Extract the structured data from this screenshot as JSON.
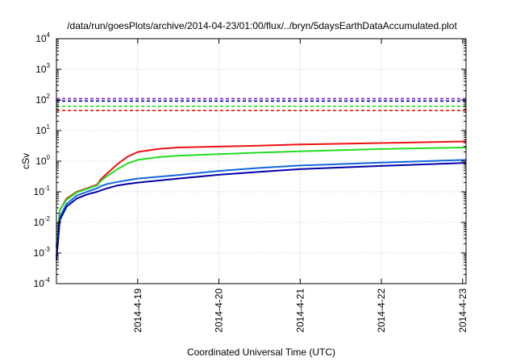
{
  "chart_data": {
    "type": "line",
    "title": "/data/run/goesPlots/archive/2014-04-23/01:00/flux/../bryn/5daysEarthDataAccumulated.plot",
    "xlabel": "Coordinated Universal Time (UTC)",
    "ylabel": "cSv",
    "x_ticks": [
      "2014-4-19",
      "2014-4-20",
      "2014-4-21",
      "2014-4-22",
      "2014-4-23"
    ],
    "x_range": [
      "2014-04-18 00:00",
      "2014-04-23 01:00"
    ],
    "y_scale": "log",
    "ylim": [
      0.0001,
      10000
    ],
    "y_ticks": [
      {
        "base": "10",
        "exp": "-4"
      },
      {
        "base": "10",
        "exp": "-3"
      },
      {
        "base": "10",
        "exp": "-2"
      },
      {
        "base": "10",
        "exp": "-1"
      },
      {
        "base": "10",
        "exp": "0"
      },
      {
        "base": "10",
        "exp": "1"
      },
      {
        "base": "10",
        "exp": "2"
      },
      {
        "base": "10",
        "exp": "3"
      },
      {
        "base": "10",
        "exp": "4"
      }
    ],
    "grid": true,
    "x_grid_color": "#bbbbbb",
    "series": [
      {
        "color": "#ee1111",
        "style": "solid",
        "x": [
          "2014-04-18 00:00",
          "2014-04-18 01:00",
          "2014-04-18 03:00",
          "2014-04-18 06:00",
          "2014-04-18 09:00",
          "2014-04-18 12:00",
          "2014-04-18 13:00",
          "2014-04-18 15:00",
          "2014-04-18 18:00",
          "2014-04-18 21:00",
          "2014-04-19 00:00",
          "2014-04-19 06:00",
          "2014-04-19 12:00",
          "2014-04-20 00:00",
          "2014-04-20 12:00",
          "2014-04-21 00:00",
          "2014-04-22 00:00",
          "2014-04-23 01:00"
        ],
        "y": [
          0.0015,
          0.025,
          0.06,
          0.1,
          0.13,
          0.17,
          0.25,
          0.4,
          0.8,
          1.4,
          2.0,
          2.5,
          2.8,
          3.0,
          3.2,
          3.5,
          3.9,
          4.4
        ]
      },
      {
        "color": "#22dd22",
        "style": "solid",
        "x": [
          "2014-04-18 00:00",
          "2014-04-18 01:00",
          "2014-04-18 03:00",
          "2014-04-18 06:00",
          "2014-04-18 09:00",
          "2014-04-18 12:00",
          "2014-04-18 13:00",
          "2014-04-18 15:00",
          "2014-04-18 18:00",
          "2014-04-18 21:00",
          "2014-04-19 00:00",
          "2014-04-19 06:00",
          "2014-04-19 12:00",
          "2014-04-20 00:00",
          "2014-04-20 12:00",
          "2014-04-21 00:00",
          "2014-04-22 00:00",
          "2014-04-23 01:00"
        ],
        "y": [
          0.0015,
          0.025,
          0.055,
          0.095,
          0.125,
          0.16,
          0.22,
          0.33,
          0.55,
          0.85,
          1.1,
          1.35,
          1.5,
          1.7,
          1.9,
          2.1,
          2.5,
          2.8
        ]
      },
      {
        "color": "#1166dd",
        "style": "solid",
        "x": [
          "2014-04-18 00:00",
          "2014-04-18 01:00",
          "2014-04-18 03:00",
          "2014-04-18 06:00",
          "2014-04-18 09:00",
          "2014-04-18 12:00",
          "2014-04-18 13:00",
          "2014-04-18 15:00",
          "2014-04-18 18:00",
          "2014-04-18 21:00",
          "2014-04-19 00:00",
          "2014-04-19 12:00",
          "2014-04-20 00:00",
          "2014-04-20 12:00",
          "2014-04-21 00:00",
          "2014-04-22 00:00",
          "2014-04-23 01:00"
        ],
        "y": [
          0.0008,
          0.015,
          0.04,
          0.075,
          0.1,
          0.13,
          0.15,
          0.18,
          0.21,
          0.24,
          0.27,
          0.35,
          0.48,
          0.6,
          0.72,
          0.9,
          1.1
        ]
      },
      {
        "color": "#0000aa",
        "style": "solid",
        "x": [
          "2014-04-18 00:00",
          "2014-04-18 01:00",
          "2014-04-18 03:00",
          "2014-04-18 06:00",
          "2014-04-18 09:00",
          "2014-04-18 12:00",
          "2014-04-18 13:00",
          "2014-04-18 15:00",
          "2014-04-18 18:00",
          "2014-04-18 21:00",
          "2014-04-19 00:00",
          "2014-04-19 12:00",
          "2014-04-20 00:00",
          "2014-04-20 12:00",
          "2014-04-21 00:00",
          "2014-04-22 00:00",
          "2014-04-23 01:00"
        ],
        "y": [
          0.0006,
          0.012,
          0.033,
          0.06,
          0.082,
          0.1,
          0.11,
          0.13,
          0.16,
          0.18,
          0.2,
          0.27,
          0.36,
          0.45,
          0.55,
          0.7,
          0.88
        ]
      },
      {
        "color": "#ee1111",
        "style": "dashed",
        "x": [
          "2014-04-18 00:00",
          "2014-04-23 01:00"
        ],
        "y": [
          45,
          45
        ]
      },
      {
        "color": "#22dd22",
        "style": "dashed",
        "x": [
          "2014-04-18 00:00",
          "2014-04-23 01:00"
        ],
        "y": [
          62,
          62
        ]
      },
      {
        "color": "#0000aa",
        "style": "dashed",
        "x": [
          "2014-04-18 00:00",
          "2014-04-23 01:00"
        ],
        "y": [
          92,
          92
        ]
      },
      {
        "color": "#8822cc",
        "style": "dashed",
        "x": [
          "2014-04-18 00:00",
          "2014-04-23 01:00"
        ],
        "y": [
          110,
          110
        ]
      }
    ]
  }
}
